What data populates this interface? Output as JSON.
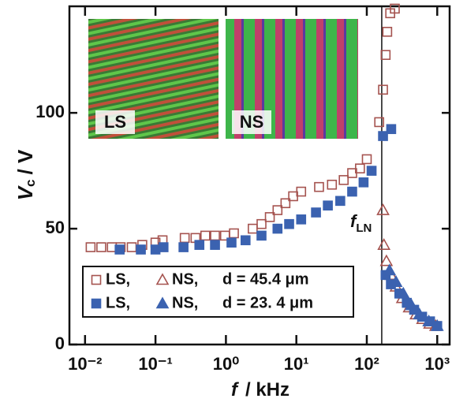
{
  "chart_data": {
    "type": "scatter",
    "x_label_symbol": "f",
    "x_label_unit": "/ kHz",
    "y_label_symbol": "V",
    "y_label_sub": "c",
    "y_label_unit": "/ V",
    "annotation_symbol": "f",
    "annotation_sub": "LN",
    "vline": 163,
    "insets": [
      "LS",
      "NS"
    ],
    "xlog": true,
    "xlim": [
      0.006,
      1500
    ],
    "ylim": [
      0,
      146
    ],
    "xticks": [
      {
        "value": 0.01,
        "label": "10⁻²"
      },
      {
        "value": 0.1,
        "label": "10⁻¹"
      },
      {
        "value": 1,
        "label": "10⁰"
      },
      {
        "value": 10,
        "label": "10¹"
      },
      {
        "value": 100,
        "label": "10²"
      },
      {
        "value": 1000,
        "label": "10³"
      }
    ],
    "yticks": [
      0,
      50,
      100
    ],
    "legend_notes": [
      "d = 45.4 μm",
      "d = 23. 4 μm"
    ],
    "series": [
      {
        "name": "LS,",
        "marker": "square",
        "filled": false,
        "color": "#a5534f",
        "x": [
          0.012,
          0.017,
          0.024,
          0.032,
          0.046,
          0.065,
          0.1,
          0.126,
          0.26,
          0.37,
          0.51,
          0.7,
          0.97,
          1.3,
          2.4,
          3.2,
          4.2,
          5.4,
          7,
          9,
          11.7,
          21,
          32,
          47,
          62,
          80,
          100,
          150,
          170,
          185,
          195,
          215,
          250
        ],
        "values": [
          42,
          42,
          42,
          42,
          42,
          43,
          44,
          45,
          46,
          46,
          47,
          47,
          47,
          48,
          50,
          52,
          55,
          58,
          61,
          64,
          66,
          68,
          69,
          71,
          74,
          76,
          80,
          96,
          110,
          125,
          135,
          143,
          145
        ]
      },
      {
        "name": "NS,",
        "marker": "triangle",
        "filled": false,
        "color": "#a5534f",
        "x": [
          170,
          175,
          190,
          220,
          260,
          320,
          400,
          500,
          620,
          780,
          950
        ],
        "values": [
          58,
          43,
          36,
          30,
          25,
          20,
          16,
          13,
          11,
          9,
          8
        ]
      },
      {
        "name": "LS,",
        "marker": "square",
        "filled": true,
        "color": "#3b62b0",
        "x": [
          0.031,
          0.062,
          0.1,
          0.13,
          0.25,
          0.42,
          0.7,
          1.2,
          1.9,
          3.2,
          5.4,
          7.9,
          11.7,
          19,
          28,
          42,
          62,
          90,
          117,
          170,
          222,
          185,
          220,
          290,
          370,
          470,
          610,
          790,
          1000
        ],
        "values": [
          41,
          41,
          41,
          42,
          42,
          43,
          43,
          44,
          45,
          47,
          50,
          52,
          54,
          57,
          60,
          62,
          66,
          70,
          75,
          90,
          93,
          30,
          26,
          22,
          18,
          15,
          12,
          10,
          8
        ]
      },
      {
        "name": "NS,",
        "marker": "triangle",
        "filled": true,
        "color": "#3b62b0",
        "x": [
          210,
          260,
          330,
          430,
          560,
          760,
          1000
        ],
        "values": [
          32,
          27,
          22,
          17,
          13,
          10,
          8
        ]
      }
    ]
  }
}
